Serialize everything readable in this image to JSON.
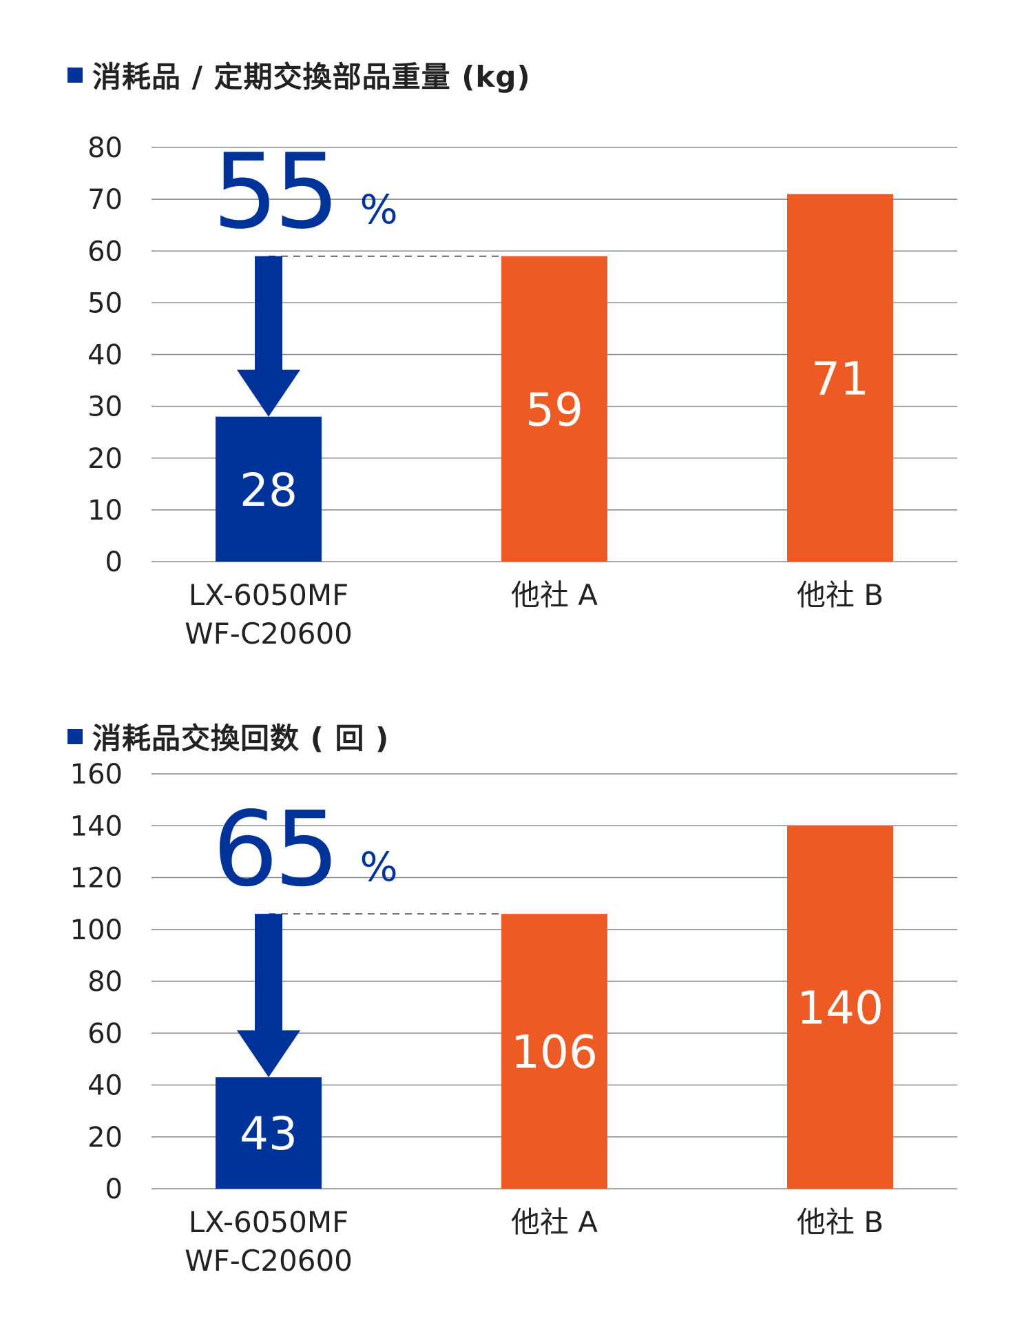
{
  "colors": {
    "accent": "#003399",
    "other": "#EE5A24",
    "grid": "#888888",
    "text": "#222222",
    "bar_label": "#ffffff"
  },
  "chart_data": [
    {
      "type": "bar",
      "title": "消耗品 / 定期交換部品重量 (kg)",
      "categories": [
        "LX-6050MF\nWF-C20600",
        "他社 A",
        "他社 B"
      ],
      "values": [
        28,
        59,
        71
      ],
      "data_labels": [
        "28",
        "59",
        "71"
      ],
      "bar_colors": [
        "#003399",
        "#EE5A24",
        "#EE5A24"
      ],
      "ylim": [
        0,
        80
      ],
      "y_ticks": [
        0,
        10,
        20,
        30,
        40,
        50,
        60,
        70,
        80
      ],
      "grid": true,
      "xlabel": "",
      "ylabel": "",
      "annotation": {
        "value": "55",
        "unit": "%",
        "arrow": "down",
        "reference_value": 59
      }
    },
    {
      "type": "bar",
      "title": "消耗品交換回数 ( 回 )",
      "categories": [
        "LX-6050MF\nWF-C20600",
        "他社 A",
        "他社 B"
      ],
      "values": [
        43,
        106,
        140
      ],
      "data_labels": [
        "43",
        "106",
        "140"
      ],
      "bar_colors": [
        "#003399",
        "#EE5A24",
        "#EE5A24"
      ],
      "ylim": [
        0,
        160
      ],
      "y_ticks": [
        0,
        20,
        40,
        60,
        80,
        100,
        120,
        140,
        160
      ],
      "grid": true,
      "xlabel": "",
      "ylabel": "",
      "annotation": {
        "value": "65",
        "unit": "%",
        "arrow": "down",
        "reference_value": 106
      }
    }
  ]
}
